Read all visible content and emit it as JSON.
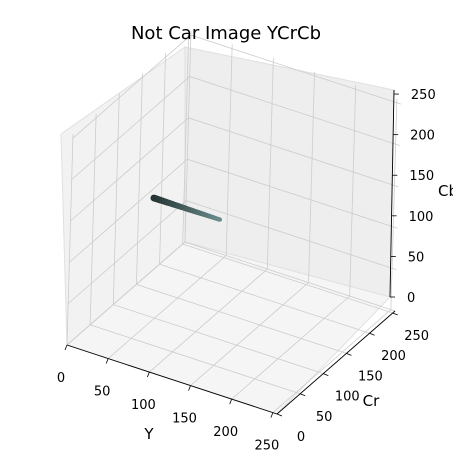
{
  "chart_data": {
    "type": "scatter3d",
    "title": "Not Car Image YCrCb",
    "xlabel": "Y",
    "ylabel": "Cr",
    "zlabel": "Cb",
    "xlim": [
      0,
      255
    ],
    "ylim": [
      0,
      255
    ],
    "zlim": [
      0,
      255
    ],
    "x_ticks": [
      0,
      50,
      100,
      150,
      200,
      250
    ],
    "y_ticks": [
      0,
      50,
      100,
      150,
      200,
      250
    ],
    "z_ticks": [
      0,
      50,
      100,
      150,
      200,
      250
    ],
    "grid": true,
    "pane_color": "#f2f2f2",
    "grid_color": "#cccccc",
    "points": {
      "x_range": [
        30,
        110
      ],
      "y": 128,
      "z": 125,
      "color_dark": "#223333",
      "color_light": "#6b8a8a"
    }
  }
}
